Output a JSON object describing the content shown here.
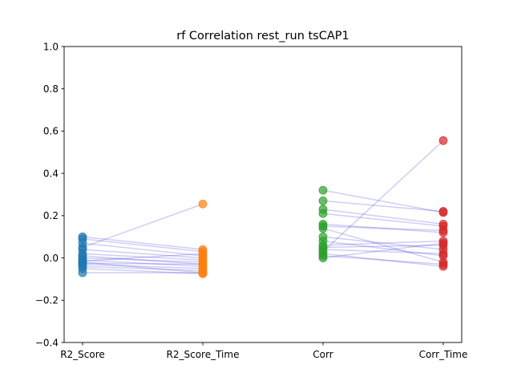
{
  "chart_data": {
    "type": "scatter",
    "title": "rf Correlation rest_run tsCAP1",
    "xlabel": "",
    "ylabel": "",
    "categories": [
      "R2_Score",
      "R2_Score_Time",
      "Corr",
      "Corr_Time"
    ],
    "ylim": [
      -0.4,
      1.0
    ],
    "yticks": [
      -0.4,
      -0.2,
      0.0,
      0.2,
      0.4,
      0.6,
      0.8,
      1.0
    ],
    "ytick_labels": [
      "−0.4",
      "−0.2",
      "0.0",
      "0.2",
      "0.4",
      "0.6",
      "0.8",
      "1.0"
    ],
    "grid": false,
    "connecting_lines": true,
    "colors": {
      "R2_Score": "#1f77b4",
      "R2_Score_Time": "#ff7f0e",
      "Corr": "#2ca02c",
      "Corr_Time": "#d62728",
      "lines": "#1f1fd6"
    },
    "pairs": [
      {
        "from": "R2_Score",
        "to": "R2_Score_Time",
        "values": [
          [
            0.1,
            0.04
          ],
          [
            0.09,
            0.03
          ],
          [
            0.07,
            0.01
          ],
          [
            0.05,
            0.255
          ],
          [
            0.04,
            0.0
          ],
          [
            0.02,
            -0.01
          ],
          [
            0.01,
            -0.03
          ],
          [
            0.0,
            -0.02
          ],
          [
            -0.01,
            -0.04
          ],
          [
            -0.02,
            -0.07
          ],
          [
            -0.03,
            -0.05
          ],
          [
            -0.04,
            -0.06
          ],
          [
            -0.05,
            -0.075
          ],
          [
            -0.07,
            -0.07
          ],
          [
            -0.015,
            0.02
          ],
          [
            -0.025,
            -0.03
          ]
        ]
      },
      {
        "from": "Corr",
        "to": "Corr_Time",
        "values": [
          [
            0.32,
            0.215
          ],
          [
            0.27,
            0.22
          ],
          [
            0.23,
            0.16
          ],
          [
            0.21,
            0.15
          ],
          [
            0.16,
            0.12
          ],
          [
            0.15,
            0.13
          ],
          [
            0.14,
            -0.02
          ],
          [
            0.1,
            0.04
          ],
          [
            0.08,
            0.01
          ],
          [
            0.06,
            0.08
          ],
          [
            0.05,
            0.06
          ],
          [
            0.04,
            0.02
          ],
          [
            0.03,
            0.555
          ],
          [
            0.01,
            -0.03
          ],
          [
            0.0,
            0.07
          ],
          [
            0.02,
            -0.04
          ]
        ]
      }
    ]
  }
}
